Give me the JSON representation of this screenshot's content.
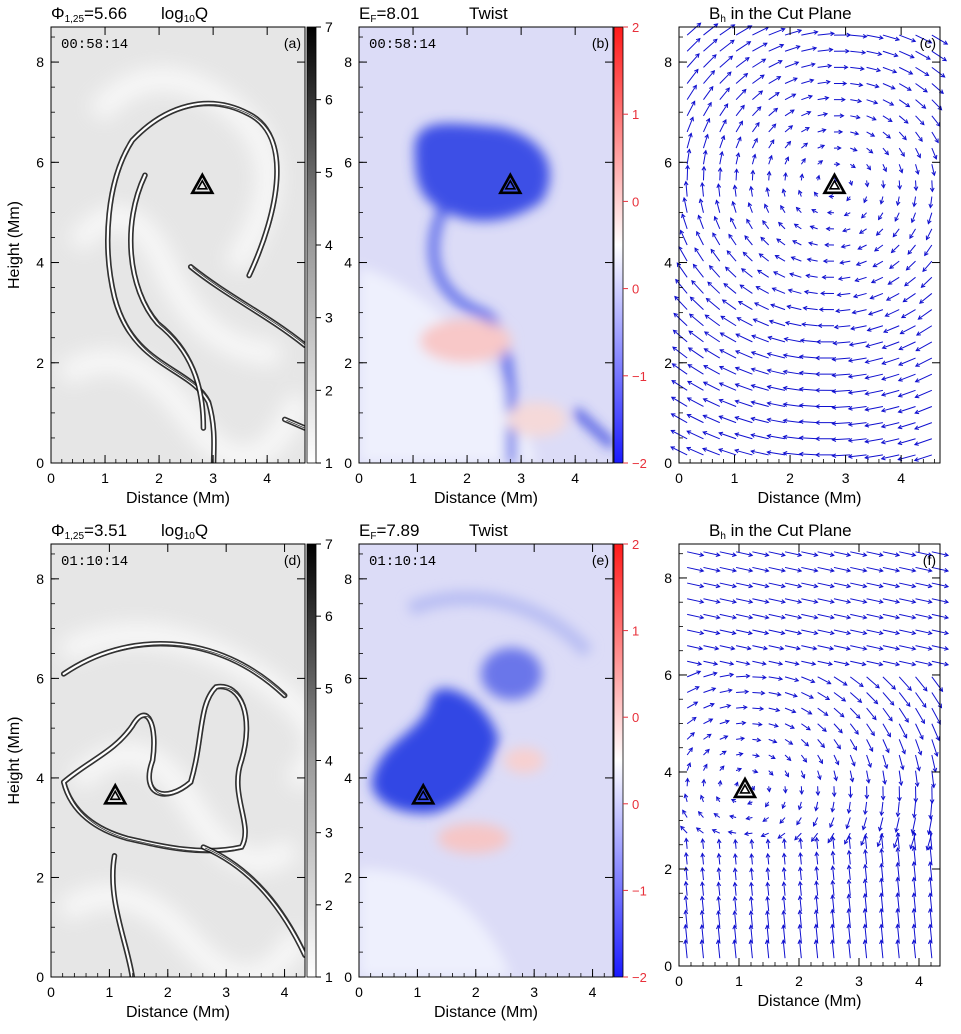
{
  "chart_data": [
    {
      "id": "a",
      "type": "heatmap",
      "panel_label": "(a)",
      "title_parts": {
        "left_sym": "Φ",
        "left_sub": "1,25",
        "left_val": "=5.66",
        "right_pre": "log",
        "right_sub": "10",
        "right_post": "Q"
      },
      "timestamp": "00:58:14",
      "xlabel": "Distance (Mm)",
      "ylabel": "Height (Mm)",
      "xlim": [
        0,
        4.7
      ],
      "ylim": [
        0,
        8.7
      ],
      "xticks": [
        "0",
        "1",
        "2",
        "3",
        "4"
      ],
      "yticks": [
        "0",
        "2",
        "4",
        "6",
        "8"
      ],
      "colorbar": {
        "range": [
          1,
          7
        ],
        "ticks": [
          "1",
          "2",
          "3",
          "4",
          "5",
          "6",
          "7"
        ],
        "colormap": "white-black"
      },
      "marker": {
        "x": 2.8,
        "y": 5.55,
        "shape": "triangle"
      }
    },
    {
      "id": "b",
      "type": "heatmap",
      "panel_label": "(b)",
      "title_parts": {
        "left_sym": "E",
        "left_sub": "F",
        "left_val": "=8.01",
        "right_pre": "Twist",
        "right_sub": "",
        "right_post": ""
      },
      "timestamp": "00:58:14",
      "xlabel": "Distance (Mm)",
      "ylabel": "",
      "xlim": [
        0,
        4.7
      ],
      "ylim": [
        0,
        8.7
      ],
      "xticks": [
        "0",
        "1",
        "2",
        "3",
        "4"
      ],
      "yticks": [
        "0",
        "2",
        "4",
        "6",
        "8"
      ],
      "colorbar": {
        "range": [
          -2,
          2
        ],
        "ticks": [
          "−2",
          "−1",
          "0",
          "0",
          "1",
          "2"
        ],
        "colormap": "blue-white-red"
      },
      "marker": {
        "x": 2.8,
        "y": 5.55,
        "shape": "triangle"
      }
    },
    {
      "id": "c",
      "type": "vector",
      "panel_label": "(c)",
      "title_parts": {
        "left_sym": "B",
        "left_sub": "h",
        "left_val": " in the Cut Plane",
        "right_pre": "",
        "right_sub": "",
        "right_post": ""
      },
      "xlabel": "Distance (Mm)",
      "ylabel": "",
      "xlim": [
        0,
        4.7
      ],
      "ylim": [
        0,
        8.7
      ],
      "xticks": [
        "0",
        "1",
        "2",
        "3",
        "4"
      ],
      "yticks": [
        "0",
        "2",
        "4",
        "6",
        "8"
      ],
      "vector_color": "#1010d0",
      "vortex_center": {
        "x": 2.8,
        "y": 5.55
      },
      "marker": {
        "x": 2.8,
        "y": 5.55,
        "shape": "triangle"
      }
    },
    {
      "id": "d",
      "type": "heatmap",
      "panel_label": "(d)",
      "title_parts": {
        "left_sym": "Φ",
        "left_sub": "1,25",
        "left_val": "=3.51",
        "right_pre": "log",
        "right_sub": "10",
        "right_post": "Q"
      },
      "timestamp": "01:10:14",
      "xlabel": "Distance (Mm)",
      "ylabel": "Height (Mm)",
      "xlim": [
        0,
        4.35
      ],
      "ylim": [
        0,
        8.7
      ],
      "xticks": [
        "0",
        "1",
        "2",
        "3",
        "4"
      ],
      "yticks": [
        "0",
        "2",
        "4",
        "6",
        "8"
      ],
      "colorbar": {
        "range": [
          1,
          7
        ],
        "ticks": [
          "1",
          "2",
          "3",
          "4",
          "5",
          "6",
          "7"
        ],
        "colormap": "white-black"
      },
      "marker": {
        "x": 1.1,
        "y": 3.65,
        "shape": "triangle"
      }
    },
    {
      "id": "e",
      "type": "heatmap",
      "panel_label": "(e)",
      "title_parts": {
        "left_sym": "E",
        "left_sub": "F",
        "left_val": "=7.89",
        "right_pre": "Twist",
        "right_sub": "",
        "right_post": ""
      },
      "timestamp": "01:10:14",
      "xlabel": "Distance (Mm)",
      "ylabel": "",
      "xlim": [
        0,
        4.35
      ],
      "ylim": [
        0,
        8.7
      ],
      "xticks": [
        "0",
        "1",
        "2",
        "3",
        "4"
      ],
      "yticks": [
        "0",
        "2",
        "4",
        "6",
        "8"
      ],
      "colorbar": {
        "range": [
          -2,
          2
        ],
        "ticks": [
          "−2",
          "−1",
          "0",
          "0",
          "1",
          "2"
        ],
        "colormap": "blue-white-red"
      },
      "marker": {
        "x": 1.1,
        "y": 3.65,
        "shape": "triangle"
      }
    },
    {
      "id": "f",
      "type": "vector",
      "panel_label": "(f)",
      "title_parts": {
        "left_sym": "B",
        "left_sub": "h",
        "left_val": " in the Cut Plane",
        "right_pre": "",
        "right_sub": "",
        "right_post": ""
      },
      "xlabel": "Distance (Mm)",
      "ylabel": "",
      "xlim": [
        0,
        4.35
      ],
      "ylim": [
        0,
        8.7
      ],
      "xticks": [
        "0",
        "1",
        "2",
        "3",
        "4"
      ],
      "yticks": [
        "0",
        "2",
        "4",
        "6",
        "8"
      ],
      "vector_color": "#1010d0",
      "vortex_center": {
        "x": 1.1,
        "y": 3.65
      },
      "marker": {
        "x": 1.1,
        "y": 3.65,
        "shape": "triangle"
      }
    }
  ]
}
